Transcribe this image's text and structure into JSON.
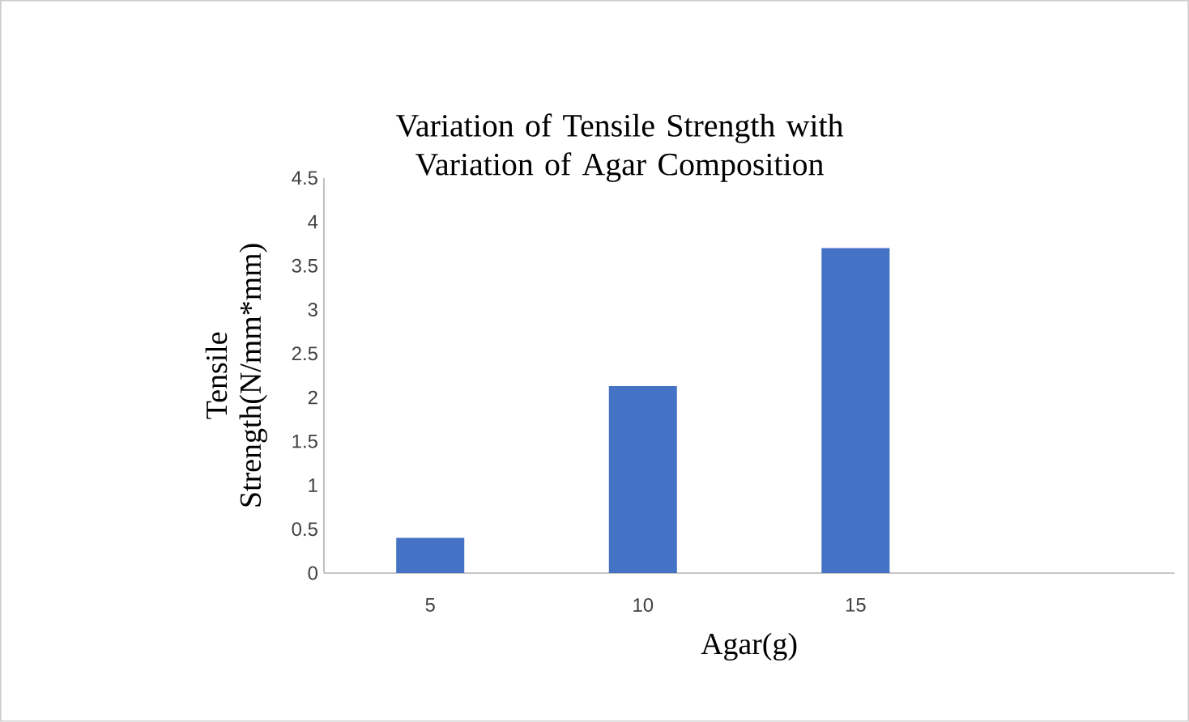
{
  "chart_data": {
    "type": "bar",
    "title": "Variation of Tensile Strength with Variation of Agar Composition",
    "xlabel": "Agar(g)",
    "ylabel": "Tensile Strength(N/mm*mm)",
    "categories": [
      "5",
      "10",
      "15",
      null
    ],
    "values": [
      0.4,
      2.13,
      3.7,
      null
    ],
    "color": "#4472c4",
    "ylim": [
      0,
      4.5
    ],
    "yticks": [
      0,
      0.5,
      1,
      1.5,
      2,
      2.5,
      3,
      3.5,
      4,
      4.5
    ]
  }
}
